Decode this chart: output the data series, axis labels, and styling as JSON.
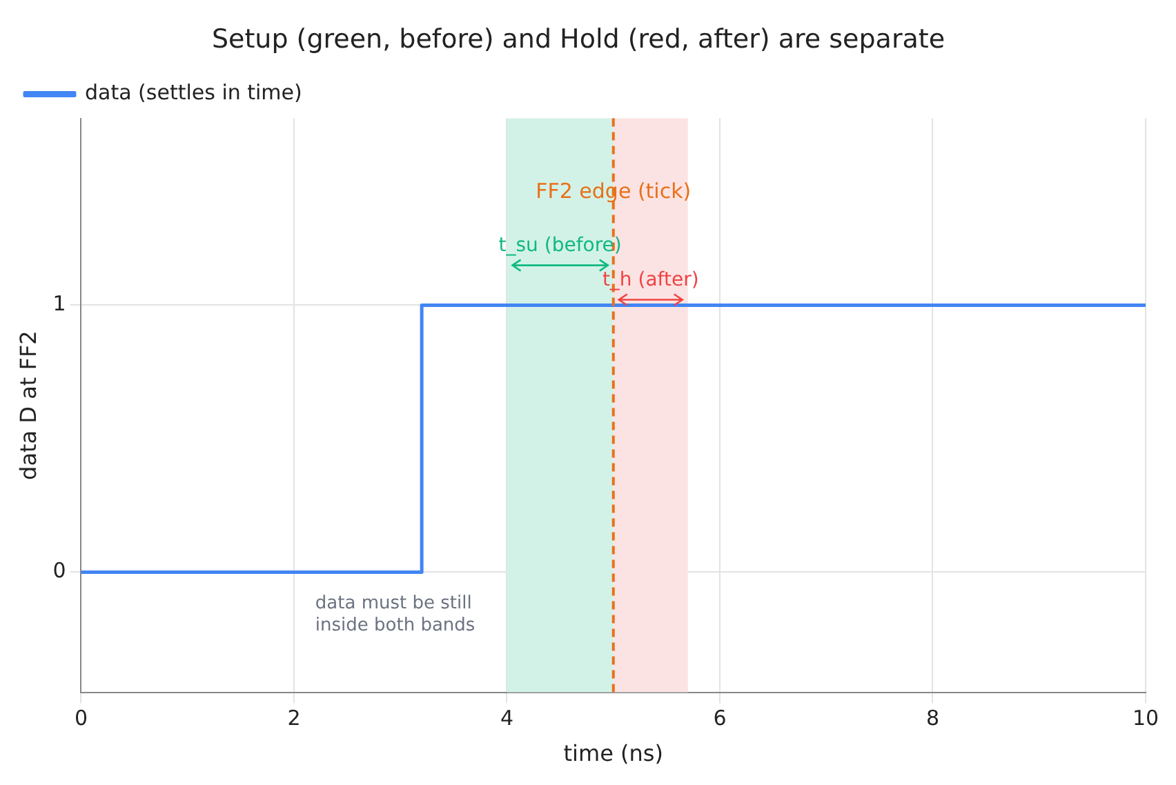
{
  "chart_data": {
    "type": "step",
    "title": "Setup (green, before) and Hold (red, after) are separate",
    "xlabel": "time (ns)",
    "ylabel": "data D at FF2",
    "x": [
      0,
      3.2,
      10
    ],
    "series": [
      {
        "name": "data (settles in time)",
        "color": "#4285f4",
        "values": [
          0,
          1,
          1
        ]
      }
    ],
    "xlim": [
      0,
      10
    ],
    "xticks": [
      0,
      2,
      4,
      6,
      8,
      10
    ],
    "ylim": [
      -0.45,
      1.7
    ],
    "yticks": [
      0,
      1
    ],
    "bands": [
      {
        "axis": "x",
        "from": 4,
        "to": 5,
        "color": "#d3f2e7"
      },
      {
        "axis": "x",
        "from": 5,
        "to": 5.7,
        "color": "#fce3e3"
      }
    ],
    "ref_lines": [
      {
        "axis": "x",
        "value": 5,
        "label": "FF2 edge (tick)",
        "color": "#e8711a",
        "line_style": "dashed"
      }
    ],
    "annotations": [
      "t_su (before)",
      "t_h (after)",
      "data must be still\ninside both bands"
    ],
    "grid": true,
    "legend": "top left",
    "marker": "none",
    "line_style": "solid"
  }
}
